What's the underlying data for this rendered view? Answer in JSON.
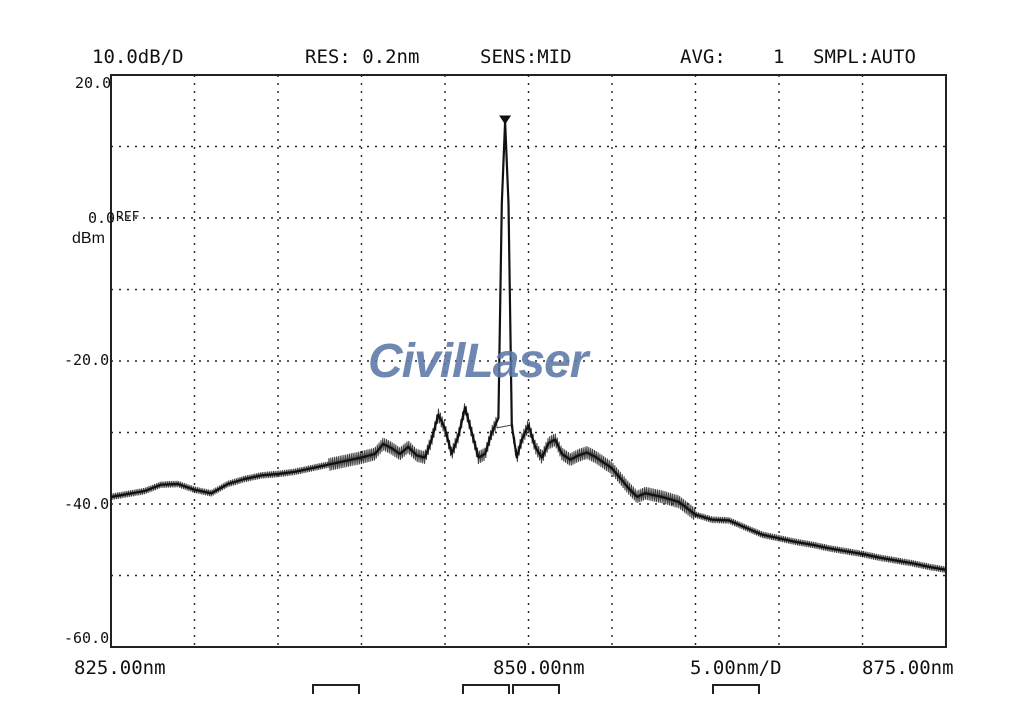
{
  "header": {
    "scale": "10.0dB/D",
    "resolution": "RES: 0.2nm",
    "sensitivity": "SENS:MID",
    "avg_label": "AVG:",
    "avg_value": "1",
    "sampling": "SMPL:AUTO"
  },
  "y_axis": {
    "ticks": [
      "20.0",
      "0.0",
      "-20.0",
      "-40.0",
      "-60.0"
    ],
    "ref_label": "REF",
    "unit": "dBm"
  },
  "x_axis": {
    "start": "825.00nm",
    "center": "850.00nm",
    "span_per_div": "5.00nm/D",
    "stop": "875.00nm"
  },
  "watermark": "CivilLaser",
  "colors": {
    "trace": "#111111",
    "grid": "#222222",
    "watermark": "#5b78a8"
  },
  "chart_data": {
    "type": "line",
    "title": "",
    "xlabel": "",
    "ylabel": "dBm",
    "xlim": [
      825.0,
      875.0
    ],
    "ylim": [
      -60.0,
      20.0
    ],
    "x_divisions": 10,
    "y_divisions": 8,
    "grid": true,
    "peak_marker": {
      "x": 848.6,
      "y": 13.5
    },
    "series": [
      {
        "x": [
          825.0,
          826.0,
          827.0,
          828.0,
          829.0,
          830.0,
          831.0,
          832.0,
          833.0,
          834.0,
          835.0,
          836.0,
          837.0,
          838.0,
          839.0,
          840.0,
          840.8,
          841.3,
          841.8,
          842.3,
          842.8,
          843.3,
          843.8,
          844.2,
          844.6,
          845.0,
          845.4,
          845.8,
          846.2,
          846.6,
          847.0,
          847.4,
          847.8,
          848.2,
          848.4,
          848.6,
          848.8,
          849.0,
          849.3,
          849.6,
          850.0,
          850.4,
          850.8,
          851.2,
          851.6,
          852.0,
          852.5,
          853.0,
          853.5,
          854.0,
          855.0,
          856.0,
          856.5,
          857.0,
          858.0,
          859.0,
          860.0,
          861.0,
          862.0,
          863.0,
          864.0,
          865.0,
          866.0,
          867.0,
          868.0,
          869.0,
          870.0,
          871.0,
          872.0,
          873.0,
          874.0,
          875.0
        ],
        "values": [
          -39.0,
          -38.6,
          -38.2,
          -37.3,
          -37.2,
          -38.0,
          -38.5,
          -37.2,
          -36.5,
          -36.0,
          -35.8,
          -35.5,
          -35.0,
          -34.5,
          -34.0,
          -33.5,
          -33.0,
          -31.6,
          -32.2,
          -33.0,
          -32.0,
          -33.2,
          -33.5,
          -31.0,
          -27.5,
          -29.5,
          -33.0,
          -30.5,
          -26.5,
          -30.0,
          -33.5,
          -33.0,
          -30.0,
          -28.0,
          2.0,
          13.5,
          2.0,
          -29.0,
          -33.5,
          -31.0,
          -29.0,
          -32.0,
          -33.5,
          -31.5,
          -31.0,
          -33.0,
          -33.8,
          -33.2,
          -32.8,
          -33.4,
          -35.0,
          -37.8,
          -39.0,
          -38.5,
          -39.0,
          -39.7,
          -41.5,
          -42.2,
          -42.3,
          -43.3,
          -44.3,
          -44.8,
          -45.3,
          -45.7,
          -46.2,
          -46.6,
          -47.0,
          -47.5,
          -47.9,
          -48.3,
          -48.8,
          -49.2
        ]
      }
    ]
  }
}
